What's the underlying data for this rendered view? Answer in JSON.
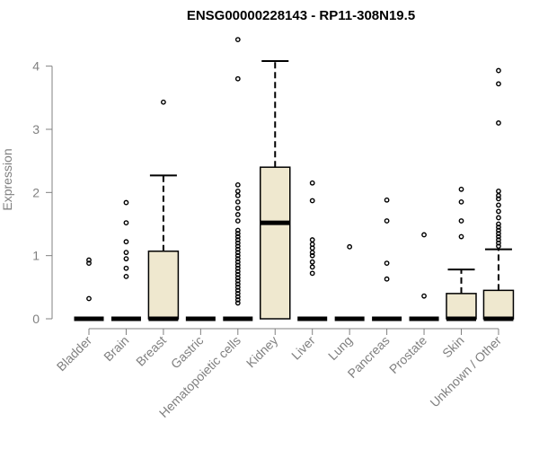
{
  "chart_data": {
    "type": "box",
    "title": "ENSG00000228143 - RP11-308N19.5",
    "ylabel": "Expression",
    "xlabel": "",
    "ylim": [
      0,
      4.45
    ],
    "yticks": [
      0,
      1,
      2,
      3,
      4
    ],
    "box_fill": "#efe8cf",
    "categories": [
      "Bladder",
      "Brain",
      "Breast",
      "Gastric",
      "Hematopoietic cells",
      "Kidney",
      "Liver",
      "Lung",
      "Pancreas",
      "Prostate",
      "Skin",
      "Unknown / Other"
    ],
    "boxes": [
      {
        "q1": 0,
        "median": 0,
        "q3": 0,
        "whisker_low": 0,
        "whisker_high": 0,
        "outliers": [
          0.32,
          0.88,
          0.93
        ]
      },
      {
        "q1": 0,
        "median": 0,
        "q3": 0,
        "whisker_low": 0,
        "whisker_high": 0,
        "outliers": [
          0.67,
          0.8,
          0.95,
          1.05,
          1.22,
          1.52,
          1.84
        ]
      },
      {
        "q1": 0,
        "median": 0,
        "q3": 1.07,
        "whisker_low": 0,
        "whisker_high": 2.27,
        "outliers": [
          3.43
        ]
      },
      {
        "q1": 0,
        "median": 0,
        "q3": 0,
        "whisker_low": 0,
        "whisker_high": 0,
        "outliers": []
      },
      {
        "q1": 0,
        "median": 0,
        "q3": 0,
        "whisker_low": 0,
        "whisker_high": 0,
        "outliers": [
          0.25,
          0.3,
          0.35,
          0.4,
          0.45,
          0.5,
          0.55,
          0.6,
          0.65,
          0.7,
          0.75,
          0.8,
          0.85,
          0.9,
          0.95,
          1.0,
          1.05,
          1.1,
          1.15,
          1.2,
          1.25,
          1.3,
          1.35,
          1.4,
          1.55,
          1.65,
          1.75,
          1.85,
          1.95,
          2.02,
          2.12,
          3.8,
          4.42
        ]
      },
      {
        "q1": 0,
        "median": 1.52,
        "q3": 2.4,
        "whisker_low": 0,
        "whisker_high": 4.08,
        "outliers": []
      },
      {
        "q1": 0,
        "median": 0,
        "q3": 0,
        "whisker_low": 0,
        "whisker_high": 0,
        "outliers": [
          0.72,
          0.82,
          0.9,
          1.0,
          1.05,
          1.12,
          1.18,
          1.25,
          1.87,
          2.15
        ]
      },
      {
        "q1": 0,
        "median": 0,
        "q3": 0,
        "whisker_low": 0,
        "whisker_high": 0,
        "outliers": [
          1.14
        ]
      },
      {
        "q1": 0,
        "median": 0,
        "q3": 0,
        "whisker_low": 0,
        "whisker_high": 0,
        "outliers": [
          0.63,
          0.88,
          1.55,
          1.88
        ]
      },
      {
        "q1": 0,
        "median": 0,
        "q3": 0,
        "whisker_low": 0,
        "whisker_high": 0,
        "outliers": [
          0.36,
          1.33
        ]
      },
      {
        "q1": 0,
        "median": 0,
        "q3": 0.4,
        "whisker_low": 0,
        "whisker_high": 0.78,
        "outliers": [
          1.3,
          1.55,
          1.85,
          2.05
        ]
      },
      {
        "q1": 0,
        "median": 0,
        "q3": 0.45,
        "whisker_low": 0,
        "whisker_high": 1.1,
        "outliers": [
          1.15,
          1.2,
          1.25,
          1.3,
          1.35,
          1.4,
          1.45,
          1.5,
          1.6,
          1.7,
          1.8,
          1.9,
          1.95,
          2.02,
          3.1,
          3.72,
          3.93
        ]
      }
    ]
  }
}
